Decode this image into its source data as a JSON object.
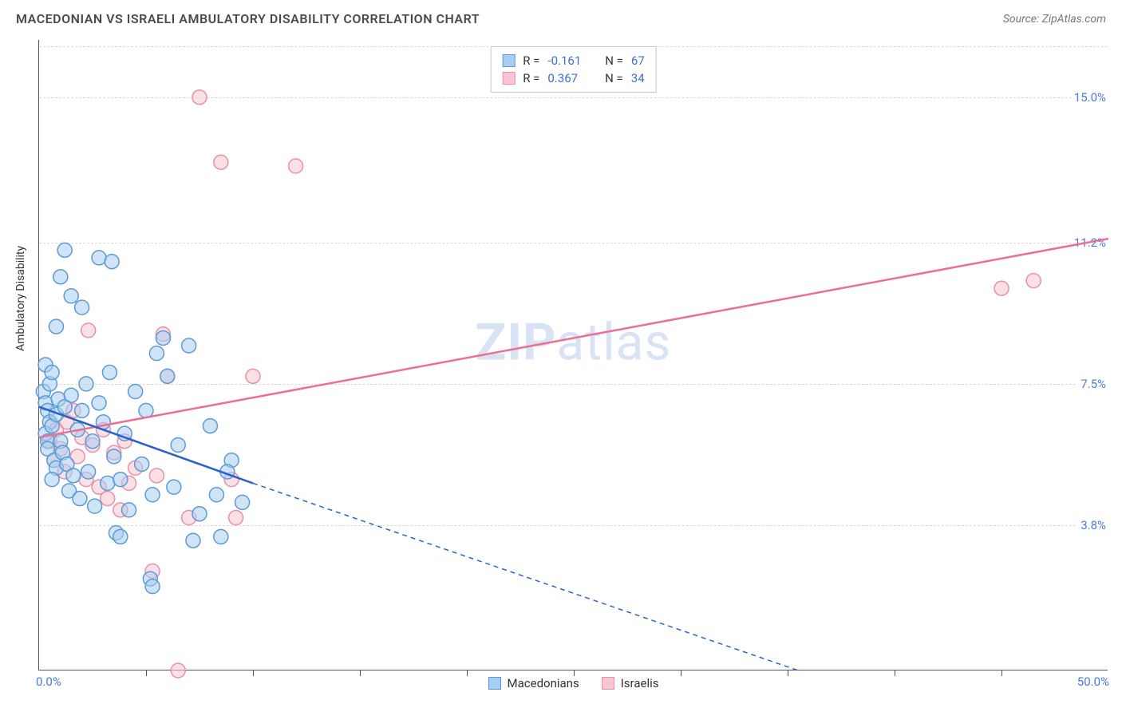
{
  "header": {
    "title": "MACEDONIAN VS ISRAELI AMBULATORY DISABILITY CORRELATION CHART",
    "source": "Source: ZipAtlas.com"
  },
  "axes": {
    "y_title": "Ambulatory Disability",
    "x_min_label": "0.0%",
    "x_max_label": "50.0%",
    "xlim": [
      0,
      50
    ],
    "ylim": [
      0,
      16.5
    ],
    "y_gridlines": [
      {
        "value": 3.8,
        "label": "3.8%"
      },
      {
        "value": 7.5,
        "label": "7.5%"
      },
      {
        "value": 11.2,
        "label": "11.2%"
      },
      {
        "value": 15.0,
        "label": "15.0%"
      }
    ],
    "xticks": [
      5,
      10,
      15,
      20,
      25,
      30,
      35,
      40,
      45
    ]
  },
  "series": {
    "macedonians": {
      "label": "Macedonians",
      "color_fill": "#a9cdf2",
      "color_stroke": "#5b9bd5",
      "line_color": "#2b62c9",
      "R": "-0.161",
      "N": "67",
      "marker_radius": 9,
      "points": [
        [
          0.2,
          7.3
        ],
        [
          0.3,
          7.0
        ],
        [
          0.4,
          6.8
        ],
        [
          0.5,
          6.5
        ],
        [
          0.3,
          6.2
        ],
        [
          0.6,
          6.4
        ],
        [
          0.4,
          6.0
        ],
        [
          0.8,
          6.7
        ],
        [
          0.5,
          7.5
        ],
        [
          0.3,
          8.0
        ],
        [
          0.6,
          7.8
        ],
        [
          0.9,
          7.1
        ],
        [
          0.4,
          5.8
        ],
        [
          0.7,
          5.5
        ],
        [
          1.0,
          6.0
        ],
        [
          1.2,
          6.9
        ],
        [
          0.8,
          5.3
        ],
        [
          1.5,
          7.2
        ],
        [
          1.1,
          5.7
        ],
        [
          0.6,
          5.0
        ],
        [
          1.3,
          5.4
        ],
        [
          1.8,
          6.3
        ],
        [
          2.0,
          6.8
        ],
        [
          1.6,
          5.1
        ],
        [
          2.2,
          7.5
        ],
        [
          1.4,
          4.7
        ],
        [
          2.5,
          6.0
        ],
        [
          2.8,
          7.0
        ],
        [
          1.9,
          4.5
        ],
        [
          3.0,
          6.5
        ],
        [
          2.3,
          5.2
        ],
        [
          3.3,
          7.8
        ],
        [
          2.6,
          4.3
        ],
        [
          3.5,
          5.6
        ],
        [
          4.0,
          6.2
        ],
        [
          3.2,
          4.9
        ],
        [
          4.5,
          7.3
        ],
        [
          3.8,
          5.0
        ],
        [
          5.0,
          6.8
        ],
        [
          4.2,
          4.2
        ],
        [
          5.5,
          8.3
        ],
        [
          4.8,
          5.4
        ],
        [
          6.0,
          7.7
        ],
        [
          5.3,
          4.6
        ],
        [
          6.5,
          5.9
        ],
        [
          7.0,
          8.5
        ],
        [
          6.3,
          4.8
        ],
        [
          8.0,
          6.4
        ],
        [
          7.5,
          4.1
        ],
        [
          9.0,
          5.5
        ],
        [
          8.5,
          3.5
        ],
        [
          5.2,
          2.4
        ],
        [
          5.3,
          2.2
        ],
        [
          2.8,
          10.8
        ],
        [
          3.4,
          10.7
        ],
        [
          2.0,
          9.5
        ],
        [
          5.8,
          8.7
        ],
        [
          3.6,
          3.6
        ],
        [
          3.8,
          3.5
        ],
        [
          1.2,
          11.0
        ],
        [
          1.0,
          10.3
        ],
        [
          0.8,
          9.0
        ],
        [
          1.5,
          9.8
        ],
        [
          9.5,
          4.4
        ],
        [
          8.3,
          4.6
        ],
        [
          7.2,
          3.4
        ],
        [
          8.8,
          5.2
        ]
      ],
      "regression": {
        "x1": 0,
        "y1": 6.9,
        "x2_solid": 10,
        "y2_solid": 4.9,
        "x2": 35.5,
        "y2": 0
      }
    },
    "israelis": {
      "label": "Israelis",
      "color_fill": "#f7c6d2",
      "color_stroke": "#e98fa9",
      "line_color": "#ec6f91",
      "R": "0.367",
      "N": "34",
      "marker_radius": 9,
      "points": [
        [
          0.5,
          6.0
        ],
        [
          0.8,
          6.3
        ],
        [
          1.0,
          5.8
        ],
        [
          1.3,
          6.5
        ],
        [
          0.7,
          5.5
        ],
        [
          1.6,
          6.8
        ],
        [
          1.2,
          5.2
        ],
        [
          2.0,
          6.1
        ],
        [
          1.8,
          5.6
        ],
        [
          2.5,
          5.9
        ],
        [
          2.2,
          5.0
        ],
        [
          3.0,
          6.3
        ],
        [
          2.8,
          4.8
        ],
        [
          3.5,
          5.7
        ],
        [
          3.2,
          4.5
        ],
        [
          4.0,
          6.0
        ],
        [
          3.8,
          4.2
        ],
        [
          4.5,
          5.3
        ],
        [
          2.3,
          8.9
        ],
        [
          5.8,
          8.8
        ],
        [
          4.2,
          4.9
        ],
        [
          5.5,
          5.1
        ],
        [
          6.0,
          7.7
        ],
        [
          10.0,
          7.7
        ],
        [
          5.3,
          2.6
        ],
        [
          6.5,
          0.0
        ],
        [
          7.0,
          4.0
        ],
        [
          9.2,
          4.0
        ],
        [
          7.5,
          15.0
        ],
        [
          8.5,
          13.3
        ],
        [
          12.0,
          13.2
        ],
        [
          9.0,
          5.0
        ],
        [
          45.0,
          10.0
        ],
        [
          46.5,
          10.2
        ]
      ],
      "regression": {
        "x1": 0,
        "y1": 6.1,
        "x2": 50,
        "y2": 11.3
      }
    }
  },
  "legend_top": {
    "r_label": "R =",
    "n_label": "N ="
  },
  "watermark": {
    "bold": "ZIP",
    "rest": "atlas"
  },
  "colors": {
    "grid": "#d8d8d8",
    "axis": "#555555",
    "text": "#4a4a4a",
    "value_blue": "#3b6fd6",
    "background": "#ffffff"
  }
}
